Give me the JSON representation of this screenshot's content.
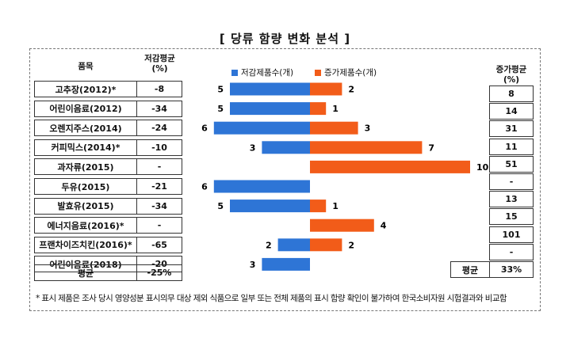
{
  "title": "[ 당류 함량 변화 분석 ]",
  "headers": {
    "item": "품목",
    "dec_avg": "저감평균\n(%)",
    "inc_avg": "증가평균\n(%)"
  },
  "legend": {
    "decrease": "저감제품수(개)",
    "increase": "증가제품수(개)"
  },
  "colors": {
    "decrease": "#2e75d6",
    "increase": "#f25c19"
  },
  "rows": [
    {
      "name": "고추장(2012)*",
      "dec_avg": "-8",
      "inc_avg": "8"
    },
    {
      "name": "어린이음료(2012)",
      "dec_avg": "-34",
      "inc_avg": "14"
    },
    {
      "name": "오렌지주스(2014)",
      "dec_avg": "-24",
      "inc_avg": "31"
    },
    {
      "name": "커피믹스(2014)*",
      "dec_avg": "-10",
      "inc_avg": "11"
    },
    {
      "name": "과자류(2015)",
      "dec_avg": "-",
      "inc_avg": "51"
    },
    {
      "name": "두유(2015)",
      "dec_avg": "-21",
      "inc_avg": "-"
    },
    {
      "name": "발효유(2015)",
      "dec_avg": "-34",
      "inc_avg": "13"
    },
    {
      "name": "에너지음료(2016)*",
      "dec_avg": "-",
      "inc_avg": "15"
    },
    {
      "name": "프랜차이즈치킨(2016)*",
      "dec_avg": "-65",
      "inc_avg": "101"
    },
    {
      "name": "어린이음료(2018)",
      "dec_avg": "-20",
      "inc_avg": "-"
    }
  ],
  "average": {
    "label": "평균",
    "dec_avg": "-25%",
    "inc_label": "평균",
    "inc_avg": "33%"
  },
  "footnote": "* 표시 제품은 조사 당시 영양성분 표시의무 대상 제외 식품으로 일부 또는 전체 제품의 표시 함량 확인이 불가하여 한국소비자원 시험결과와 비교함",
  "chart_data": {
    "type": "bar",
    "orientation": "horizontal-diverging",
    "categories": [
      "고추장(2012)*",
      "어린이음료(2012)",
      "오렌지주스(2014)",
      "커피믹스(2014)*",
      "과자류(2015)",
      "두유(2015)",
      "발효유(2015)",
      "에너지음료(2016)*",
      "프랜차이즈치킨(2016)*",
      "어린이음료(2018)"
    ],
    "series": [
      {
        "name": "저감제품수(개)",
        "values": [
          5,
          5,
          6,
          3,
          0,
          6,
          5,
          0,
          2,
          3
        ],
        "color": "#2e75d6",
        "direction": "left"
      },
      {
        "name": "증가제품수(개)",
        "values": [
          2,
          1,
          3,
          7,
          10,
          0,
          1,
          4,
          2,
          0
        ],
        "color": "#f25c19",
        "direction": "right"
      }
    ],
    "xlim": [
      -6,
      10
    ],
    "legend_position": "top",
    "grid": false
  }
}
